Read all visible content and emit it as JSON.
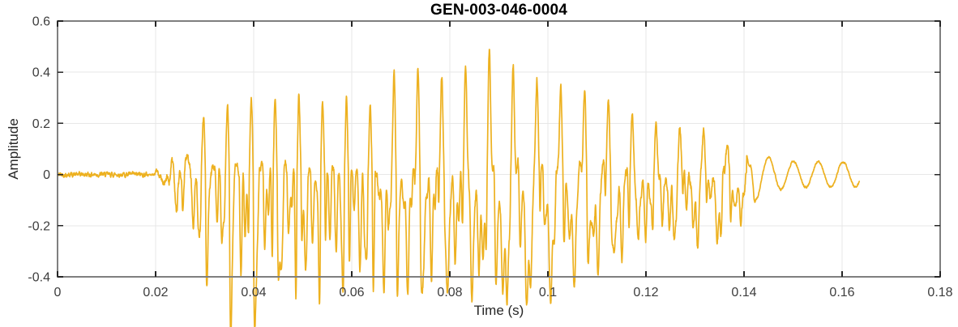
{
  "chart_data": {
    "type": "line",
    "title": "GEN-003-046-0004",
    "xlabel": "Time (s)",
    "ylabel": "Amplitude",
    "xlim": [
      0,
      0.18
    ],
    "ylim": [
      -0.4,
      0.6
    ],
    "xticks": [
      0,
      0.02,
      0.04,
      0.06,
      0.08,
      0.1,
      0.12,
      0.14,
      0.16,
      0.18
    ],
    "xtick_labels": [
      "0",
      "0.02",
      "0.04",
      "0.06",
      "0.08",
      "0.1",
      "0.12",
      "0.14",
      "0.16",
      "0.18"
    ],
    "yticks": [
      -0.4,
      -0.2,
      0,
      0.2,
      0.4,
      0.6
    ],
    "ytick_labels": [
      "-0.4",
      "-0.2",
      "0",
      "0.2",
      "0.4",
      "0.6"
    ],
    "grid": true,
    "legend": null,
    "line_color": "#EDB120",
    "background_color": "#FFFFFF",
    "axis_frame_color": "#7F7F7F",
    "tick_mark_color": "#262626",
    "tick_label_color": "#3D3D3D",
    "grid_color": "#E7E7E7",
    "signal": {
      "kind": "acoustic-burst-waveform",
      "duration_s": 0.1635,
      "sample_dt_s": 5e-05,
      "pitch_hz": 206,
      "pulse_ref_s": 0.0735,
      "harmonics": [
        1.0,
        0.72,
        0.55,
        0.42,
        0.3,
        0.2
      ],
      "peak_amplitude": 0.47,
      "min_amplitude": -0.35,
      "noise": {
        "pre_amp": 0.0095,
        "burst_amp": 0.018,
        "tail_amp": 0.004,
        "pre_end_s": 0.0185
      },
      "onset": {
        "freq_hz": 330,
        "start_s": 0.0195,
        "peak_s": 0.0265,
        "end_s": 0.034,
        "amp": 0.085
      },
      "tail": {
        "freq_hz": 198,
        "start_s": 0.1405,
        "end_s": 0.1635,
        "phase_rad": 2.2,
        "amp_points": [
          [
            0.1405,
            0.082
          ],
          [
            0.147,
            0.06
          ],
          [
            0.151,
            0.05
          ],
          [
            0.1635,
            0.048
          ]
        ]
      },
      "envelope_pos": [
        [
          0.0195,
          0.0
        ],
        [
          0.022,
          0.03
        ],
        [
          0.0245,
          0.05
        ],
        [
          0.027,
          0.13
        ],
        [
          0.03,
          0.2
        ],
        [
          0.033,
          0.26
        ],
        [
          0.036,
          0.31
        ],
        [
          0.0375,
          0.3
        ],
        [
          0.04,
          0.33
        ],
        [
          0.0435,
          0.285
        ],
        [
          0.046,
          0.35
        ],
        [
          0.049,
          0.3
        ],
        [
          0.053,
          0.3
        ],
        [
          0.0565,
          0.28
        ],
        [
          0.059,
          0.33
        ],
        [
          0.0615,
          0.3
        ],
        [
          0.064,
          0.27
        ],
        [
          0.0655,
          0.25
        ],
        [
          0.068,
          0.38
        ],
        [
          0.0735,
          0.435
        ],
        [
          0.077,
          0.42
        ],
        [
          0.0805,
          0.44
        ],
        [
          0.083,
          0.45
        ],
        [
          0.0855,
          0.46
        ],
        [
          0.088,
          0.47
        ],
        [
          0.0905,
          0.44
        ],
        [
          0.0931,
          0.43
        ],
        [
          0.0955,
          0.415
        ],
        [
          0.098,
          0.4
        ],
        [
          0.1005,
          0.4
        ],
        [
          0.103,
          0.37
        ],
        [
          0.106,
          0.35
        ],
        [
          0.109,
          0.32
        ],
        [
          0.112,
          0.3
        ],
        [
          0.115,
          0.27
        ],
        [
          0.118,
          0.245
        ],
        [
          0.121,
          0.22
        ],
        [
          0.124,
          0.2
        ],
        [
          0.127,
          0.19
        ],
        [
          0.13,
          0.175
        ],
        [
          0.133,
          0.16
        ],
        [
          0.1355,
          0.14
        ],
        [
          0.1375,
          0.12
        ],
        [
          0.139,
          0.1
        ],
        [
          0.141,
          0.06
        ],
        [
          0.1435,
          0.0
        ]
      ],
      "envelope_neg": [
        [
          0.0195,
          0.0
        ],
        [
          0.024,
          0.05
        ],
        [
          0.027,
          0.12
        ],
        [
          0.03,
          0.17
        ],
        [
          0.034,
          0.22
        ],
        [
          0.0375,
          0.35
        ],
        [
          0.041,
          0.27
        ],
        [
          0.045,
          0.26
        ],
        [
          0.05,
          0.27
        ],
        [
          0.055,
          0.25
        ],
        [
          0.06,
          0.26
        ],
        [
          0.065,
          0.27
        ],
        [
          0.07,
          0.26
        ],
        [
          0.075,
          0.29
        ],
        [
          0.08,
          0.28
        ],
        [
          0.085,
          0.3
        ],
        [
          0.09,
          0.32
        ],
        [
          0.095,
          0.3
        ],
        [
          0.1,
          0.27
        ],
        [
          0.105,
          0.25
        ],
        [
          0.11,
          0.23
        ],
        [
          0.115,
          0.21
        ],
        [
          0.12,
          0.18
        ],
        [
          0.125,
          0.17
        ],
        [
          0.13,
          0.15
        ],
        [
          0.134,
          0.14
        ],
        [
          0.1375,
          0.17
        ],
        [
          0.14,
          0.09
        ],
        [
          0.1435,
          0.0
        ]
      ]
    }
  }
}
